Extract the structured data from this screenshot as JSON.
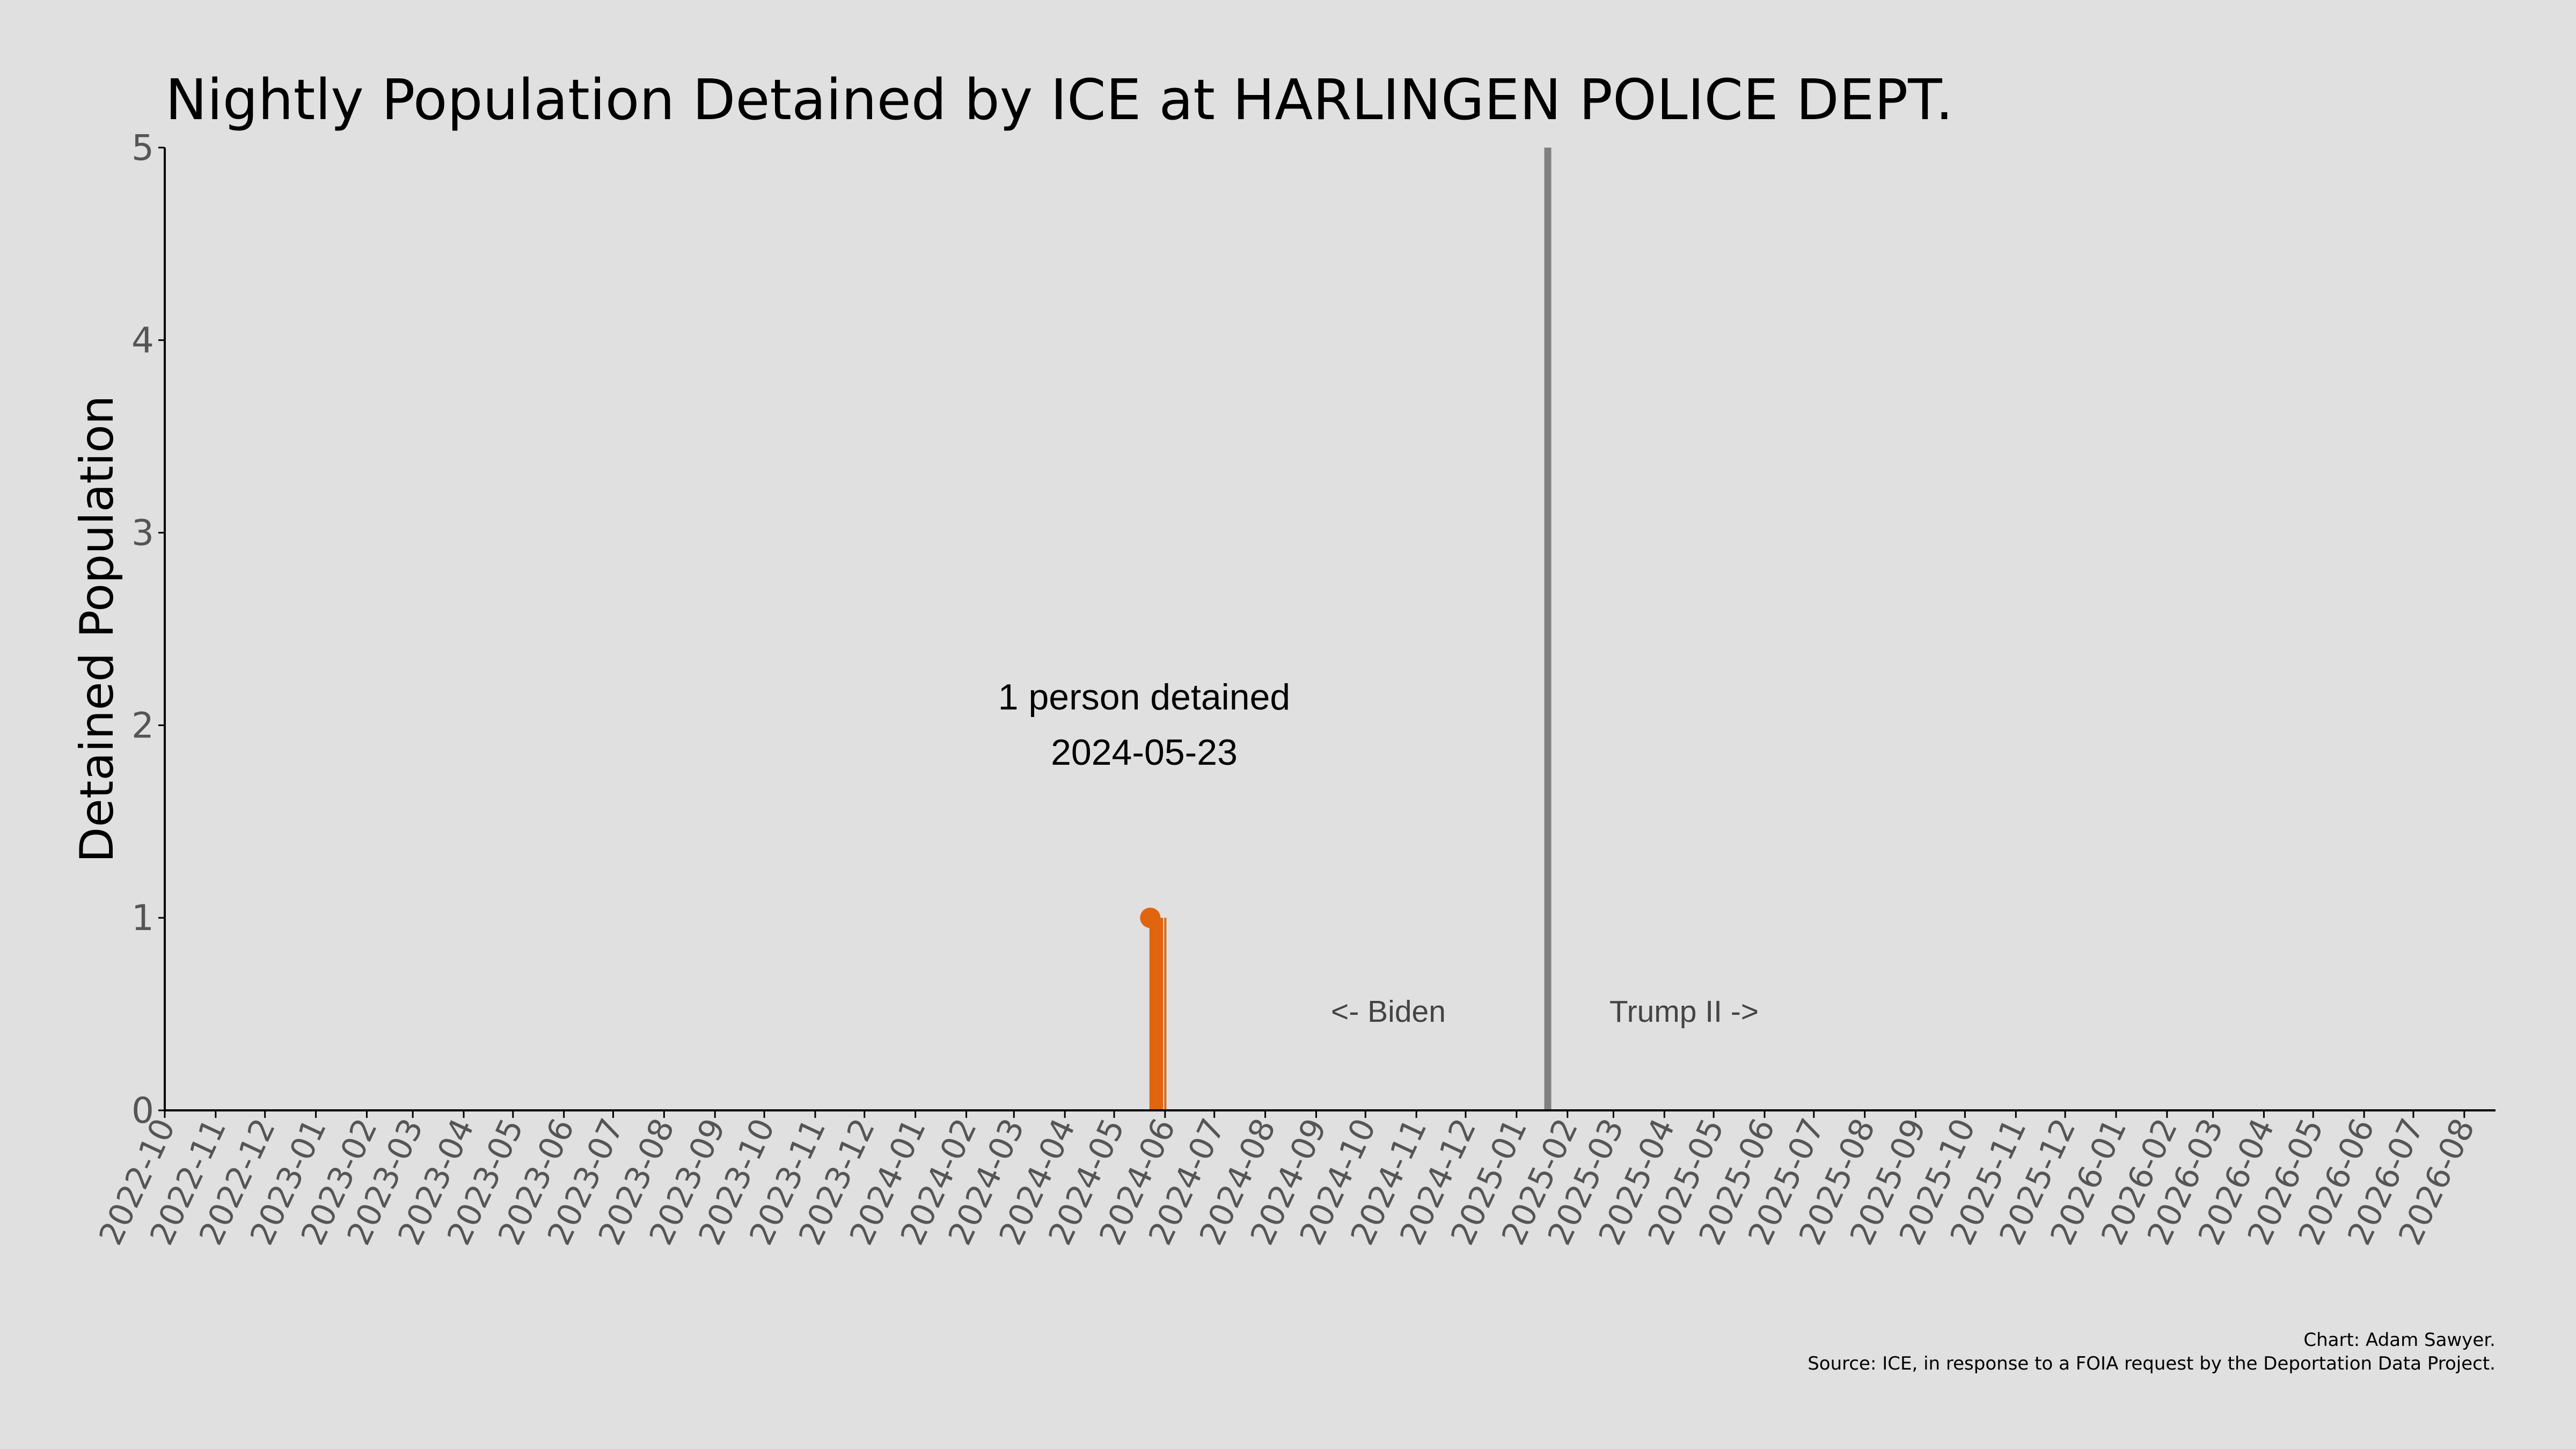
{
  "chart_data": {
    "type": "bar",
    "title": "Nightly Population Detained by ICE at HARLINGEN POLICE DEPT.",
    "xlabel": "",
    "ylabel": "Detained Population",
    "ylim": [
      0,
      5
    ],
    "yticks": [
      "0",
      "1",
      "2",
      "3",
      "4",
      "5"
    ],
    "xlim": [
      "2022-10-01",
      "2026-08-20"
    ],
    "xticks": [
      "2022-10",
      "2022-11",
      "2022-12",
      "2023-01",
      "2023-02",
      "2023-03",
      "2023-04",
      "2023-05",
      "2023-06",
      "2023-07",
      "2023-08",
      "2023-09",
      "2023-10",
      "2023-11",
      "2023-12",
      "2024-01",
      "2024-02",
      "2024-03",
      "2024-04",
      "2024-05",
      "2024-06",
      "2024-07",
      "2024-08",
      "2024-09",
      "2024-10",
      "2024-11",
      "2024-12",
      "2025-01",
      "2025-02",
      "2025-03",
      "2025-04",
      "2025-05",
      "2025-06",
      "2025-07",
      "2025-08",
      "2025-09",
      "2025-10",
      "2025-11",
      "2025-12",
      "2026-01",
      "2026-02",
      "2026-03",
      "2026-04",
      "2026-05",
      "2026-06",
      "2026-07",
      "2026-08"
    ],
    "series": [
      {
        "values": [
          {
            "x": "2024-05-23",
            "y": 1
          },
          {
            "x": "2024-05-24",
            "y": 1
          },
          {
            "x": "2024-05-25",
            "y": 1
          },
          {
            "x": "2024-05-26",
            "y": 1
          },
          {
            "x": "2024-05-27",
            "y": 1
          },
          {
            "x": "2024-05-28",
            "y": 1
          },
          {
            "x": "2024-05-29",
            "y": 1
          },
          {
            "x": "2024-05-30",
            "y": 1
          },
          {
            "x": "2024-06-01",
            "y": 1
          }
        ]
      }
    ],
    "highlight_point": {
      "x": "2024-05-23",
      "y": 1
    },
    "annotation": {
      "line1": "1 person detained",
      "line2": "2024-05-23"
    },
    "divider_date": "2025-01-20",
    "era_labels": {
      "left": "<- Biden",
      "right": "Trump II ->"
    },
    "grid": false,
    "colors": {
      "bar": "#e0650e",
      "divider": "#808080",
      "background": "#e0e0e0",
      "axis": "#000000"
    }
  },
  "credits": {
    "line1": "Chart: Adam Sawyer.",
    "line2": "Source: ICE, in response to a FOIA request by the Deportation Data Project."
  }
}
